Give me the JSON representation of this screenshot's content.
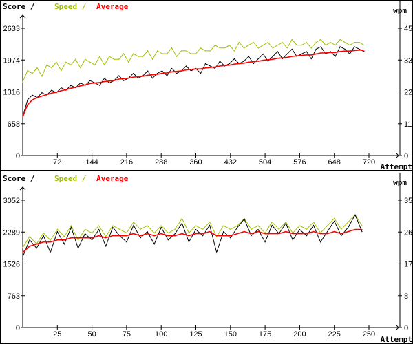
{
  "chart_data": [
    {
      "type": "line",
      "legend": {
        "score": "Score /",
        "speed": "Speed /",
        "average": "Average"
      },
      "xlabel": "Attempt",
      "ylabel_right": "wpm",
      "xlim": [
        0,
        720
      ],
      "ylim": [
        0,
        2633
      ],
      "ylim_right": [
        0,
        45
      ],
      "x_ticks": [
        "72",
        "144",
        "216",
        "288",
        "360",
        "432",
        "504",
        "576",
        "648",
        "720"
      ],
      "y_ticks": [
        "0",
        "658",
        "1316",
        "1974",
        "2633"
      ],
      "y_right_ticks": [
        "0",
        "11",
        "22",
        "33",
        "45"
      ],
      "colors": {
        "score": "#000000",
        "speed": "#a0c000",
        "average": "#ff0000"
      },
      "x": [
        0,
        10,
        20,
        30,
        40,
        50,
        60,
        70,
        80,
        90,
        100,
        110,
        120,
        130,
        140,
        150,
        160,
        170,
        180,
        190,
        200,
        210,
        220,
        230,
        240,
        250,
        260,
        270,
        280,
        290,
        300,
        310,
        320,
        330,
        340,
        350,
        360,
        370,
        380,
        390,
        400,
        410,
        420,
        430,
        440,
        450,
        460,
        470,
        480,
        490,
        500,
        510,
        520,
        530,
        540,
        550,
        560,
        570,
        580,
        590,
        600,
        610,
        620,
        630,
        640,
        650,
        660,
        670,
        680,
        690,
        700,
        710
      ],
      "series": [
        {
          "key": "score",
          "axis": "left",
          "values": [
            800,
            1150,
            1250,
            1200,
            1300,
            1250,
            1350,
            1300,
            1400,
            1350,
            1450,
            1400,
            1500,
            1450,
            1550,
            1500,
            1450,
            1600,
            1500,
            1550,
            1650,
            1550,
            1600,
            1700,
            1600,
            1650,
            1750,
            1600,
            1700,
            1750,
            1650,
            1800,
            1700,
            1750,
            1850,
            1750,
            1800,
            1700,
            1900,
            1850,
            1800,
            1950,
            1850,
            1900,
            2000,
            1900,
            1950,
            2050,
            1900,
            2000,
            2100,
            1950,
            2050,
            2150,
            2000,
            2100,
            2200,
            2050,
            2100,
            2150,
            2000,
            2200,
            2250,
            2100,
            2150,
            2050,
            2250,
            2200,
            2100,
            2250,
            2200,
            2150
          ]
        },
        {
          "key": "speed",
          "axis": "right",
          "values": [
            26,
            30,
            29,
            31,
            28,
            32,
            31,
            33,
            30,
            33,
            32,
            34,
            31,
            34,
            33,
            32,
            35,
            32,
            35,
            34,
            34,
            36,
            33,
            36,
            35,
            35,
            37,
            34,
            37,
            36,
            36,
            38,
            35,
            37,
            37,
            36,
            36,
            38,
            37,
            37,
            39,
            38,
            38,
            39,
            37,
            40,
            38,
            39,
            40,
            38,
            39,
            40,
            38,
            39,
            40,
            38,
            41,
            39,
            39,
            40,
            38,
            40,
            41,
            39,
            40,
            39,
            41,
            40,
            39,
            40,
            40,
            39
          ]
        },
        {
          "key": "average",
          "axis": "left",
          "values": [
            800,
            1050,
            1150,
            1200,
            1230,
            1260,
            1290,
            1310,
            1340,
            1360,
            1390,
            1410,
            1440,
            1460,
            1490,
            1500,
            1510,
            1530,
            1540,
            1550,
            1580,
            1590,
            1600,
            1620,
            1630,
            1640,
            1660,
            1670,
            1680,
            1700,
            1710,
            1730,
            1740,
            1750,
            1770,
            1780,
            1790,
            1790,
            1810,
            1820,
            1830,
            1850,
            1860,
            1870,
            1890,
            1900,
            1910,
            1930,
            1940,
            1950,
            1970,
            1980,
            1990,
            2010,
            2020,
            2030,
            2050,
            2060,
            2070,
            2080,
            2080,
            2100,
            2120,
            2120,
            2130,
            2130,
            2150,
            2160,
            2160,
            2170,
            2180,
            2180
          ]
        }
      ]
    },
    {
      "type": "line",
      "legend": {
        "score": "Score /",
        "speed": "Speed /",
        "average": "Average"
      },
      "xlabel": "Attempt",
      "ylabel_right": "wpm",
      "xlim": [
        0,
        250
      ],
      "ylim": [
        0,
        3052
      ],
      "ylim_right": [
        0,
        35
      ],
      "x_ticks": [
        "25",
        "50",
        "75",
        "100",
        "125",
        "150",
        "175",
        "200",
        "225",
        "250"
      ],
      "y_ticks": [
        "0",
        "763",
        "1526",
        "2289",
        "3052"
      ],
      "y_right_ticks": [
        "0",
        "8",
        "17",
        "26",
        "35"
      ],
      "colors": {
        "score": "#000000",
        "speed": "#a0c000",
        "average": "#ff0000"
      },
      "x": [
        0,
        5,
        10,
        15,
        20,
        25,
        30,
        35,
        40,
        45,
        50,
        55,
        60,
        65,
        70,
        75,
        80,
        85,
        90,
        95,
        100,
        105,
        110,
        115,
        120,
        125,
        130,
        135,
        140,
        145,
        150,
        155,
        160,
        165,
        170,
        175,
        180,
        185,
        190,
        195,
        200,
        205,
        210,
        215,
        220,
        225,
        230,
        235,
        240,
        245
      ],
      "series": [
        {
          "key": "score",
          "axis": "left",
          "values": [
            1700,
            2100,
            1900,
            2200,
            1800,
            2300,
            2000,
            2400,
            1900,
            2250,
            2100,
            2350,
            1950,
            2400,
            2200,
            2050,
            2450,
            2150,
            2300,
            2000,
            2400,
            2100,
            2250,
            2500,
            2050,
            2350,
            2200,
            2450,
            1800,
            2300,
            2150,
            2400,
            2600,
            2200,
            2350,
            2050,
            2450,
            2250,
            2500,
            2100,
            2350,
            2200,
            2450,
            2050,
            2300,
            2550,
            2200,
            2400,
            2700,
            2300
          ]
        },
        {
          "key": "speed",
          "axis": "right",
          "values": [
            22,
            25,
            23,
            26,
            24,
            27,
            25,
            28,
            24,
            27,
            26,
            28,
            25,
            28,
            27,
            26,
            29,
            27,
            28,
            26,
            28,
            26,
            27,
            30,
            26,
            28,
            27,
            29,
            25,
            28,
            27,
            28,
            30,
            27,
            28,
            26,
            29,
            27,
            29,
            26,
            28,
            27,
            29,
            26,
            28,
            30,
            27,
            29,
            31,
            28
          ]
        },
        {
          "key": "average",
          "axis": "left",
          "values": [
            1800,
            1950,
            2000,
            2050,
            2050,
            2100,
            2100,
            2150,
            2150,
            2150,
            2150,
            2200,
            2150,
            2200,
            2200,
            2200,
            2250,
            2200,
            2250,
            2200,
            2250,
            2200,
            2200,
            2250,
            2200,
            2250,
            2250,
            2300,
            2200,
            2200,
            2200,
            2250,
            2300,
            2250,
            2300,
            2250,
            2250,
            2250,
            2300,
            2250,
            2250,
            2250,
            2300,
            2250,
            2250,
            2300,
            2250,
            2300,
            2350,
            2350
          ]
        }
      ]
    }
  ]
}
